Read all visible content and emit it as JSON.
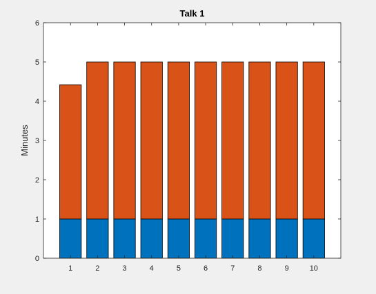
{
  "chart_data": {
    "type": "bar",
    "stacked": true,
    "title": "Talk 1",
    "xlabel": "",
    "ylabel": "Minutes",
    "categories": [
      "1",
      "2",
      "3",
      "4",
      "5",
      "6",
      "7",
      "8",
      "9",
      "10"
    ],
    "series": [
      {
        "values": [
          1,
          1,
          1,
          1,
          1,
          1,
          1,
          1,
          1,
          1
        ],
        "color": "#0072bd"
      },
      {
        "values": [
          3.42,
          4,
          4,
          4,
          4,
          4,
          4,
          4,
          4,
          4
        ],
        "color": "#d95319"
      }
    ],
    "ylim": [
      0,
      6
    ],
    "yticks": [
      "0",
      "1",
      "2",
      "3",
      "4",
      "5",
      "6"
    ],
    "xlim": [
      0,
      11
    ],
    "grid": false,
    "legend": "none",
    "colors": {
      "figure_background": "#f0f0f0",
      "axes_background": "#ffffff",
      "axis_color": "#262626",
      "bar_edge": "#000000"
    }
  }
}
